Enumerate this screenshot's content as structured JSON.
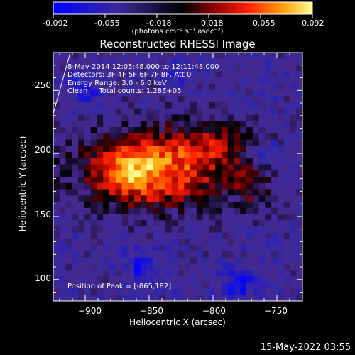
{
  "colorbar": {
    "ticks": [
      "-0.092",
      "-0.055",
      "-0.018",
      "0.018",
      "0.055",
      "0.092"
    ],
    "units": "(photons cm⁻² s⁻¹ asec⁻²)",
    "range": [
      -0.092,
      0.092
    ]
  },
  "chart_data": {
    "type": "heatmap",
    "title": "Reconstructed RHESSI Image",
    "xlabel": "Heliocentric X (arcsec)",
    "ylabel": "Heliocentric Y (arcsec)",
    "xlim": [
      -925,
      -730
    ],
    "ylim": [
      83,
      280
    ],
    "x_ticks": [
      -900,
      -850,
      -800,
      -750
    ],
    "x_tick_labels": [
      "−900",
      "−850",
      "−800",
      "−750"
    ],
    "y_ticks": [
      100,
      150,
      200,
      250
    ],
    "y_tick_labels": [
      "100",
      "150",
      "200",
      "250"
    ],
    "peak_position": [
      -865,
      182
    ],
    "grid_nx": 40,
    "grid_ny": 40,
    "description_source": "emission region centered near (-850,185), extended from x≈-920 to -760, y≈150 to 230"
  },
  "info": {
    "line1": "8-May-2014 12:05:48.000 to 12:11:48.000",
    "line2": "Detectors: 3F 4F 5F 6F 7F 8F, Att 0",
    "line3": "Energy Range: 3.0 - 6.0 keV",
    "line4": "Clean     Total counts: 1.28E+05",
    "peak": "Position of Peak = [-865,182]"
  },
  "footer": {
    "timestamp": "15-May-2022 03:55"
  }
}
